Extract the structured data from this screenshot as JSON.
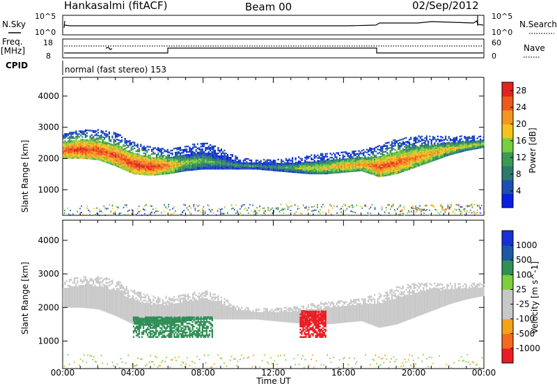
{
  "header": {
    "station": "Hankasalmi (fitACF)",
    "beam": "Beam 00",
    "date": "02/Sep/2012"
  },
  "panels": {
    "nsky_label": "N.Sky",
    "nsky_top": "10^5",
    "nsky_bottom": "10^0",
    "nsearch_label": "N.Search",
    "nsearch_top": "10^5",
    "nsearch_bottom": "10^0",
    "freq_label_1": "Freq.",
    "freq_label_2": "[MHz]",
    "freq_top": "18",
    "freq_bottom": "8",
    "nave_label": "Nave",
    "nave_top": "60",
    "nave_bottom": "0",
    "cpid_label": "CPID",
    "cpid_text": "normal (fast stereo) 153"
  },
  "colors": {
    "power_scale": [
      "#0a1ee6",
      "#1c4fb0",
      "#2c7a6c",
      "#3a9a52",
      "#7acd3c",
      "#f3c21e",
      "#f39621",
      "#ee5a1e",
      "#e2221e"
    ],
    "velocity_scale": [
      "#ec1c24",
      "#f46b1f",
      "#f5a21d",
      "#c8c8c8",
      "#c8c8c8",
      "#7ccf3d",
      "#2f8f56",
      "#1d58a6",
      "#1a2fd6"
    ]
  },
  "chart_data": [
    {
      "type": "heatmap",
      "title": "",
      "xlabel": "Time UT",
      "ylabel": "Slant Range [km]",
      "xlim": [
        "00:00",
        "24:00"
      ],
      "ylim": [
        180,
        4600
      ],
      "x_ticks": [
        "00:00",
        "04:00",
        "08:00",
        "12:00",
        "16:00",
        "20:00",
        "00:00"
      ],
      "y_ticks": [
        1000,
        2000,
        3000,
        4000
      ],
      "colorbar_label": "Power [dB]",
      "colorbar_ticks": [
        4,
        8,
        12,
        16,
        20,
        24,
        28
      ],
      "colorbar_range": [
        0,
        30
      ],
      "echo_band": {
        "hours": [
          0,
          1,
          2,
          3,
          4,
          5,
          6,
          7,
          8,
          9,
          10,
          11,
          12,
          13,
          14,
          15,
          16,
          17,
          18,
          19,
          20,
          21,
          22,
          23,
          24
        ],
        "lower_km": [
          2000,
          2000,
          1950,
          1750,
          1500,
          1450,
          1500,
          1600,
          1650,
          1650,
          1650,
          1650,
          1600,
          1550,
          1500,
          1500,
          1550,
          1600,
          1400,
          1500,
          1700,
          1900,
          2100,
          2250,
          2350
        ],
        "upper_km": [
          2800,
          2900,
          2900,
          2800,
          2500,
          2350,
          2300,
          2400,
          2500,
          2300,
          2000,
          1950,
          1950,
          2000,
          2100,
          2150,
          2200,
          2250,
          2400,
          2600,
          2700,
          2700,
          2700,
          2700,
          2700
        ],
        "peak_power_db": [
          26,
          28,
          27,
          26,
          28,
          28,
          24,
          16,
          14,
          12,
          12,
          12,
          12,
          14,
          18,
          20,
          22,
          22,
          26,
          26,
          24,
          22,
          20,
          18,
          18
        ]
      }
    },
    {
      "type": "heatmap",
      "title": "",
      "xlabel": "Time UT",
      "ylabel": "Slant Range [km]",
      "xlim": [
        "00:00",
        "24:00"
      ],
      "ylim": [
        180,
        4600
      ],
      "x_ticks": [
        "00:00",
        "04:00",
        "08:00",
        "12:00",
        "16:00",
        "20:00",
        "00:00"
      ],
      "y_ticks": [
        1000,
        2000,
        3000,
        4000
      ],
      "colorbar_label": "Velocity [m s^-1]",
      "colorbar_ticks": [
        1000,
        500,
        100,
        25,
        -25,
        -100,
        -500,
        -1000
      ],
      "colorbar_range": [
        -1000,
        1000
      ],
      "features": [
        {
          "hours": [
            0,
            4
          ],
          "range_km": [
            2000,
            2800
          ],
          "velocity": 0
        },
        {
          "hours": [
            4,
            8.5
          ],
          "range_km": [
            1100,
            1700
          ],
          "velocity": 300
        },
        {
          "hours": [
            13.5,
            15
          ],
          "range_km": [
            1100,
            1900
          ],
          "velocity": -800
        },
        {
          "hours": [
            9,
            24
          ],
          "range_km": [
            1650,
            2600
          ],
          "velocity": 0
        }
      ]
    }
  ]
}
